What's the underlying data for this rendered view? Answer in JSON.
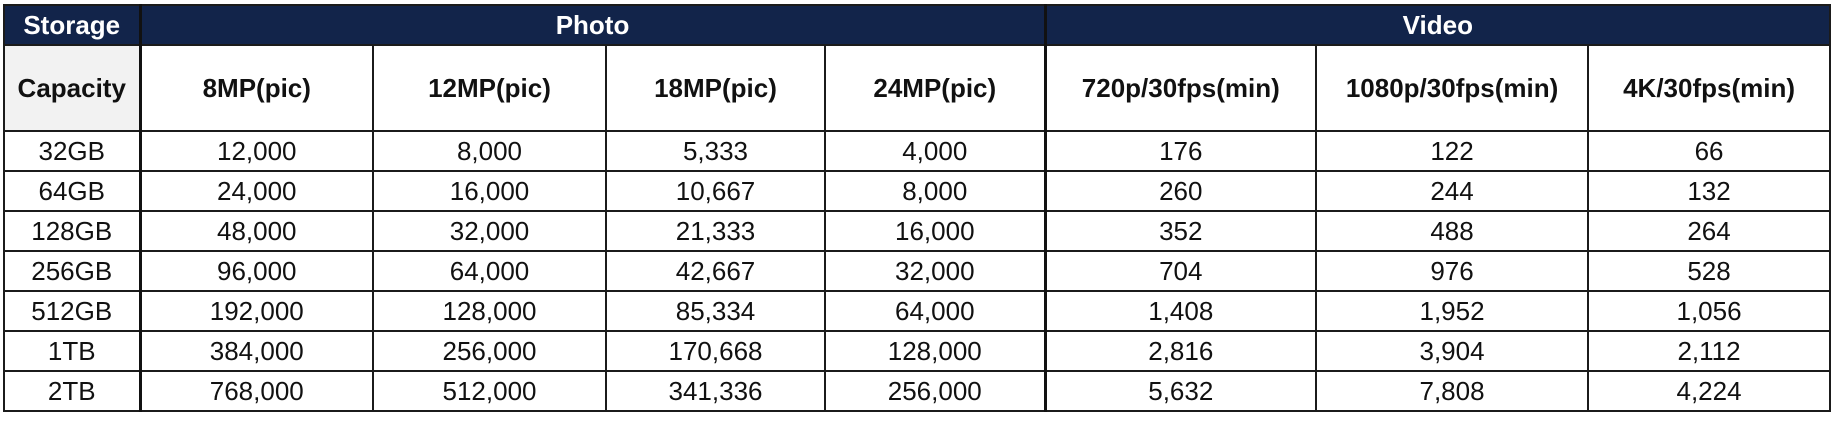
{
  "header_row1": {
    "storage": "Storage",
    "photo": "Photo",
    "video": "Video"
  },
  "header_row2": {
    "capacity": "Capacity",
    "columns": [
      "8MP(pic)",
      "12MP(pic)",
      "18MP(pic)",
      "24MP(pic)",
      "720p/30fps(min)",
      "1080p/30fps(min)",
      "4K/30fps(min)"
    ]
  },
  "rows": [
    {
      "capacity": "32GB",
      "values": [
        "12,000",
        "8,000",
        "5,333",
        "4,000",
        "176",
        "122",
        "66"
      ]
    },
    {
      "capacity": "64GB",
      "values": [
        "24,000",
        "16,000",
        "10,667",
        "8,000",
        "260",
        "244",
        "132"
      ]
    },
    {
      "capacity": "128GB",
      "values": [
        "48,000",
        "32,000",
        "21,333",
        "16,000",
        "352",
        "488",
        "264"
      ]
    },
    {
      "capacity": "256GB",
      "values": [
        "96,000",
        "64,000",
        "42,667",
        "32,000",
        "704",
        "976",
        "528"
      ]
    },
    {
      "capacity": "512GB",
      "values": [
        "192,000",
        "128,000",
        "85,334",
        "64,000",
        "1,408",
        "1,952",
        "1,056"
      ]
    },
    {
      "capacity": "1TB",
      "values": [
        "384,000",
        "256,000",
        "170,668",
        "128,000",
        "2,816",
        "3,904",
        "2,112"
      ]
    },
    {
      "capacity": "2TB",
      "values": [
        "768,000",
        "512,000",
        "341,336",
        "256,000",
        "5,632",
        "7,808",
        "4,224"
      ]
    }
  ]
}
